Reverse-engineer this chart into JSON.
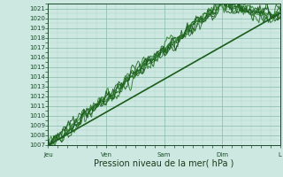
{
  "xlabel": "Pression niveau de la mer( hPa )",
  "ylim": [
    1007,
    1021.5
  ],
  "yticks": [
    1007,
    1008,
    1009,
    1010,
    1011,
    1012,
    1013,
    1014,
    1015,
    1016,
    1017,
    1018,
    1019,
    1020,
    1021
  ],
  "xtick_labels": [
    "Jeu",
    "Ven",
    "Sam",
    "Dim",
    "L"
  ],
  "xtick_positions": [
    0,
    60,
    120,
    180,
    240
  ],
  "total_points": 241,
  "bg_color": "#cce8e0",
  "plot_bg_color": "#cce8e0",
  "grid_major_color": "#88bba8",
  "grid_minor_color": "#aad4c4",
  "line_dark": "#1a5c1a",
  "line_mid": "#2d7a2d",
  "tick_color": "#1a4a2a",
  "label_color": "#1a3a1a",
  "xlabel_fontsize": 7,
  "tick_fontsize": 5
}
